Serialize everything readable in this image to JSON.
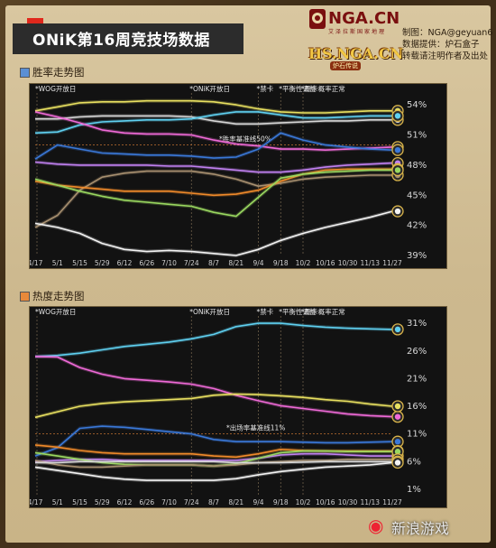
{
  "header": {
    "title": "ONiK第16周竞技场数据",
    "logo_nga": "NGA.CN",
    "logo_nga_sub": "艾泽拉斯国家地理",
    "logo_hs": "HS.NGA.CN",
    "logo_hs_sub": "炉石传说",
    "credits": [
      "制图：NGA@geyuan6",
      "数据提供：炉石盒子",
      "转载请注明作者及出处"
    ]
  },
  "sections": {
    "winrate_label": "胜率走势图",
    "popularity_label": "热度走势图"
  },
  "colors": {
    "winrate_square": "#5b8fd4",
    "popularity_square": "#e8893a",
    "panel_bg": "#121212",
    "title_accent": "#e0281c"
  },
  "footer": {
    "brand": "新浪游戏"
  },
  "chart_data": [
    {
      "type": "line",
      "title": "胜率走势图",
      "x": [
        "4/17",
        "5/1",
        "5/15",
        "5/29",
        "6/12",
        "6/26",
        "7/10",
        "7/24",
        "8/7",
        "8/21",
        "9/4",
        "9/18",
        "10/2",
        "10/16",
        "10/30",
        "11/13",
        "11/27"
      ],
      "ylim": [
        39,
        55
      ],
      "yticks": [
        "54%",
        "51%",
        "48%",
        "45%",
        "42%",
        "39%"
      ],
      "grid": false,
      "annotations": [
        {
          "x": "4/17",
          "label": "*WOG开放日"
        },
        {
          "x": "7/24",
          "label": "*ONiK开放日"
        },
        {
          "x": "9/4",
          "label": "*禁卡"
        },
        {
          "x": "9/18",
          "label": "*平衡性调整"
        },
        {
          "x": "10/2",
          "label": "*新卡概率正常"
        }
      ],
      "reference_line": {
        "y": 50,
        "label": "*胜率基准线50%"
      },
      "series": [
        {
          "color": "#e8e060",
          "values": [
            53.4,
            53.8,
            54.2,
            54.3,
            54.3,
            54.4,
            54.4,
            54.4,
            54.3,
            54.0,
            53.6,
            53.3,
            53.2,
            53.2,
            53.3,
            53.4,
            53.4
          ]
        },
        {
          "color": "#d7d7d7",
          "values": [
            52.6,
            52.6,
            52.8,
            52.9,
            52.9,
            52.9,
            52.9,
            52.8,
            52.4,
            52.1,
            52.1,
            52.2,
            52.3,
            52.4,
            52.4,
            52.5,
            52.5
          ]
        },
        {
          "color": "#5fd0f0",
          "values": [
            51.2,
            51.3,
            52.0,
            52.3,
            52.4,
            52.5,
            52.5,
            52.6,
            53.0,
            53.3,
            53.3,
            53.0,
            52.7,
            52.7,
            52.8,
            52.9,
            52.9
          ]
        },
        {
          "color": "#f06ad8",
          "values": [
            53.3,
            52.8,
            52.2,
            51.5,
            51.2,
            51.1,
            51.1,
            51.0,
            50.5,
            50.1,
            49.9,
            49.6,
            49.6,
            49.5,
            49.6,
            49.7,
            49.8
          ]
        },
        {
          "color": "#3a78d8",
          "values": [
            48.6,
            50.0,
            49.6,
            49.2,
            49.1,
            49.0,
            49.0,
            48.9,
            48.7,
            48.8,
            49.6,
            51.2,
            50.5,
            50.0,
            49.8,
            49.6,
            49.5
          ]
        },
        {
          "color": "#c080f0",
          "values": [
            48.3,
            48.1,
            48.0,
            48.0,
            48.0,
            48.0,
            47.9,
            47.9,
            47.7,
            47.5,
            47.3,
            47.3,
            47.5,
            47.8,
            48.0,
            48.1,
            48.2
          ]
        },
        {
          "color": "#a89070",
          "values": [
            41.8,
            43.0,
            45.5,
            46.8,
            47.2,
            47.4,
            47.4,
            47.4,
            47.1,
            46.6,
            45.9,
            46.2,
            46.6,
            46.8,
            46.9,
            47.0,
            47.0
          ]
        },
        {
          "color": "#f08a2a",
          "values": [
            46.4,
            46.0,
            45.8,
            45.6,
            45.4,
            45.4,
            45.4,
            45.2,
            45.0,
            45.1,
            45.5,
            46.4,
            47.1,
            47.5,
            47.6,
            47.6,
            47.6
          ]
        },
        {
          "color": "#9ad860",
          "values": [
            46.6,
            46.0,
            45.4,
            44.9,
            44.5,
            44.3,
            44.1,
            43.9,
            43.3,
            42.9,
            44.8,
            46.7,
            47.1,
            47.3,
            47.4,
            47.5,
            47.5
          ]
        },
        {
          "color": "#f4f4f4",
          "values": [
            42.2,
            41.8,
            41.2,
            40.2,
            39.6,
            39.4,
            39.5,
            39.4,
            39.2,
            39.0,
            39.6,
            40.5,
            41.2,
            41.8,
            42.3,
            42.8,
            43.4
          ]
        }
      ]
    },
    {
      "type": "line",
      "title": "热度走势图",
      "x": [
        "4/17",
        "5/1",
        "5/15",
        "5/29",
        "6/12",
        "6/26",
        "7/10",
        "7/24",
        "8/7",
        "8/21",
        "9/4",
        "9/18",
        "10/2",
        "10/16",
        "10/30",
        "11/13",
        "11/27"
      ],
      "ylim": [
        0,
        32
      ],
      "yticks": [
        "31%",
        "26%",
        "21%",
        "16%",
        "11%",
        "6%",
        "1%"
      ],
      "grid": false,
      "annotations": [
        {
          "x": "4/17",
          "label": "*WOG开放日"
        },
        {
          "x": "7/24",
          "label": "*ONiK开放日"
        },
        {
          "x": "9/4",
          "label": "*禁卡"
        },
        {
          "x": "9/18",
          "label": "*平衡性调整"
        },
        {
          "x": "10/2",
          "label": "*新卡概率正常"
        }
      ],
      "reference_line": {
        "y": 11,
        "label": "*出场率基准线11%"
      },
      "series": [
        {
          "color": "#5fd0f0",
          "values": [
            25.0,
            25.2,
            25.6,
            26.2,
            26.8,
            27.2,
            27.6,
            28.2,
            29.0,
            30.4,
            31.0,
            31.0,
            30.6,
            30.3,
            30.1,
            30.0,
            29.9
          ]
        },
        {
          "color": "#f06ad8",
          "values": [
            25.0,
            24.9,
            23.0,
            21.8,
            21.0,
            20.7,
            20.4,
            20.0,
            19.2,
            18.0,
            17.0,
            16.1,
            15.6,
            15.1,
            14.6,
            14.3,
            14.1
          ]
        },
        {
          "color": "#e8e060",
          "values": [
            14.0,
            15.0,
            16.0,
            16.5,
            16.8,
            17.0,
            17.2,
            17.4,
            18.0,
            18.2,
            18.1,
            17.9,
            17.6,
            17.2,
            16.9,
            16.4,
            16.0
          ]
        },
        {
          "color": "#3a78d8",
          "values": [
            7.0,
            8.5,
            12.0,
            12.4,
            12.2,
            11.8,
            11.4,
            11.0,
            10.0,
            9.6,
            9.6,
            9.6,
            9.5,
            9.4,
            9.4,
            9.5,
            9.6
          ]
        },
        {
          "color": "#f08a2a",
          "values": [
            9.0,
            8.6,
            8.0,
            7.6,
            7.4,
            7.4,
            7.4,
            7.4,
            7.0,
            6.8,
            7.4,
            8.2,
            8.0,
            7.9,
            7.9,
            7.9,
            7.9
          ]
        },
        {
          "color": "#c080f0",
          "values": [
            6.0,
            6.2,
            6.4,
            6.4,
            6.2,
            6.2,
            6.2,
            6.2,
            6.2,
            6.2,
            6.6,
            7.2,
            7.4,
            7.4,
            7.2,
            7.0,
            7.0
          ]
        },
        {
          "color": "#9ad860",
          "values": [
            7.6,
            7.0,
            6.4,
            5.8,
            5.5,
            5.4,
            5.4,
            5.4,
            5.2,
            5.6,
            6.6,
            7.6,
            7.9,
            7.9,
            7.8,
            7.8,
            7.8
          ]
        },
        {
          "color": "#a89070",
          "values": [
            6.2,
            5.4,
            5.0,
            5.0,
            5.2,
            5.4,
            5.4,
            5.4,
            5.2,
            5.4,
            5.8,
            6.0,
            6.2,
            6.2,
            6.4,
            6.4,
            6.4
          ]
        },
        {
          "color": "#d7d7d7",
          "values": [
            5.8,
            5.8,
            6.0,
            6.0,
            6.0,
            6.0,
            6.0,
            6.0,
            6.0,
            5.8,
            5.8,
            5.8,
            5.9,
            6.0,
            6.0,
            6.0,
            6.0
          ]
        },
        {
          "color": "#f4f4f4",
          "values": [
            5.0,
            4.4,
            3.8,
            3.2,
            2.8,
            2.6,
            2.6,
            2.6,
            2.6,
            2.9,
            3.6,
            4.2,
            4.6,
            5.0,
            5.2,
            5.4,
            5.8
          ]
        }
      ]
    }
  ]
}
